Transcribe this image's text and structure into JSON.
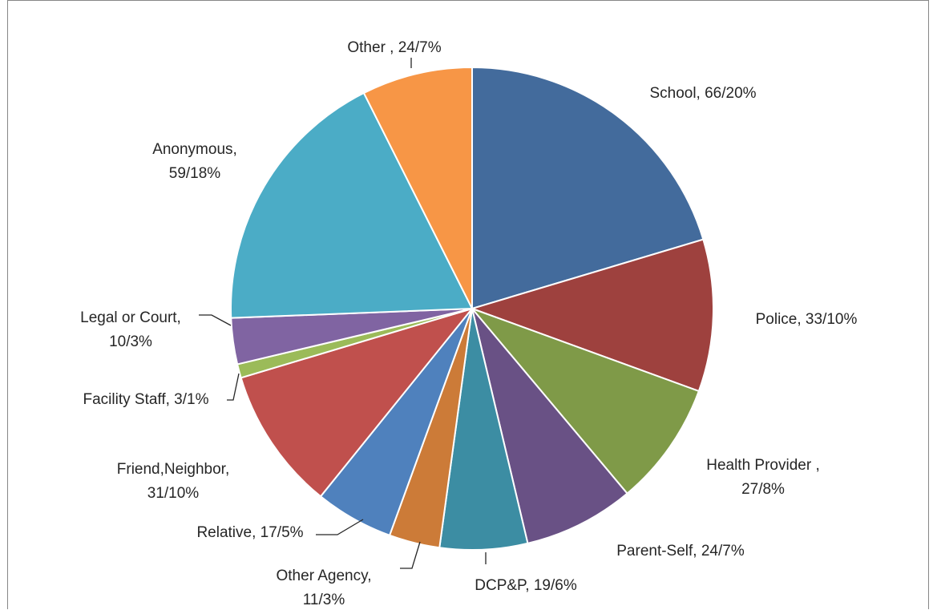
{
  "chart_data": {
    "type": "pie",
    "title": "",
    "start_angle_deg": 0,
    "direction": "clockwise",
    "slices": [
      {
        "name": "School",
        "value": 66,
        "label_line1": "School, 66/20%",
        "label_line2": "",
        "color": "#436B9C"
      },
      {
        "name": "Police",
        "value": 33,
        "label_line1": "Police, 33/10%",
        "label_line2": "",
        "color": "#9E413E"
      },
      {
        "name": "Health Provider",
        "value": 27,
        "label_line1": "Health Provider ,",
        "label_line2": "27/8%",
        "color": "#7F9A48"
      },
      {
        "name": "Parent-Self",
        "value": 24,
        "label_line1": "Parent-Self, 24/7%",
        "label_line2": "",
        "color": "#695185"
      },
      {
        "name": "DCP&P",
        "value": 19,
        "label_line1": "DCP&P, 19/6%",
        "label_line2": "",
        "color": "#3C8DA3"
      },
      {
        "name": "Other Agency",
        "value": 11,
        "label_line1": "Other Agency,",
        "label_line2": "11/3%",
        "color": "#CC7B38"
      },
      {
        "name": "Relative",
        "value": 17,
        "label_line1": "Relative, 17/5%",
        "label_line2": "",
        "color": "#4F81BD"
      },
      {
        "name": "Friend,Neighbor",
        "value": 31,
        "label_line1": "Friend,Neighbor,",
        "label_line2": "31/10%",
        "color": "#C0504D"
      },
      {
        "name": "Facility Staff",
        "value": 3,
        "label_line1": "Facility Staff, 3/1%",
        "label_line2": "",
        "color": "#9BBB59"
      },
      {
        "name": "Legal or Court",
        "value": 10,
        "label_line1": "Legal or Court,",
        "label_line2": "10/3%",
        "color": "#8064A2"
      },
      {
        "name": "Anonymous",
        "value": 59,
        "label_line1": "Anonymous,",
        "label_line2": "59/18%",
        "color": "#4BACC6"
      },
      {
        "name": "Other",
        "value": 24,
        "label_line1": "Other , 24/7%",
        "label_line2": "",
        "color": "#F79646"
      }
    ]
  }
}
